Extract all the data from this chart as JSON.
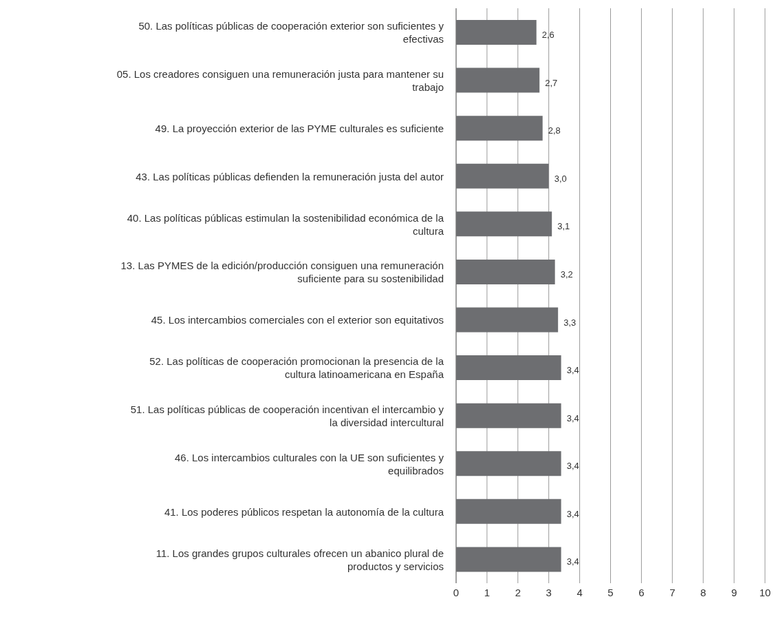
{
  "chart_data": {
    "type": "bar",
    "orientation": "horizontal",
    "categories": [
      "50. Las políticas públicas de cooperación exterior son suficientes y efectivas",
      "05. Los creadores consiguen una remuneración justa para mantener su trabajo",
      "49. La proyección exterior de las PYME culturales es suficiente",
      "43. Las políticas públicas defienden la remuneración justa del autor",
      "40. Las políticas públicas estimulan la sostenibilidad económica de la cultura",
      "13. Las PYMES de la edición/producción consiguen una remuneración suficiente para su sostenibilidad",
      "45. Los intercambios comerciales con el exterior son equitativos",
      "52. Las políticas de cooperación promocionan la presencia de la cultura latinoamericana en España",
      "51. Las políticas públicas de cooperación incentivan el intercambio y la diversidad intercultural",
      "46. Los intercambios culturales con la UE son suficientes y equilibrados",
      "41. Los poderes públicos respetan la autonomía de la cultura",
      "11. Los grandes grupos culturales ofrecen un abanico plural de productos y servicios"
    ],
    "values": [
      2.6,
      2.7,
      2.8,
      3.0,
      3.1,
      3.2,
      3.3,
      3.4,
      3.4,
      3.4,
      3.4,
      3.4
    ],
    "value_labels": [
      "2,6",
      "2,7",
      "2,8",
      "3,0",
      "3,1",
      "3,2",
      "3,3",
      "3,4",
      "3,4",
      "3,4",
      "3,4",
      "3,4"
    ],
    "color": "#6d6e71",
    "xlim": [
      0,
      10
    ],
    "xticks": [
      0,
      1,
      2,
      3,
      4,
      5,
      6,
      7,
      8,
      9,
      10
    ],
    "grid": "x"
  }
}
